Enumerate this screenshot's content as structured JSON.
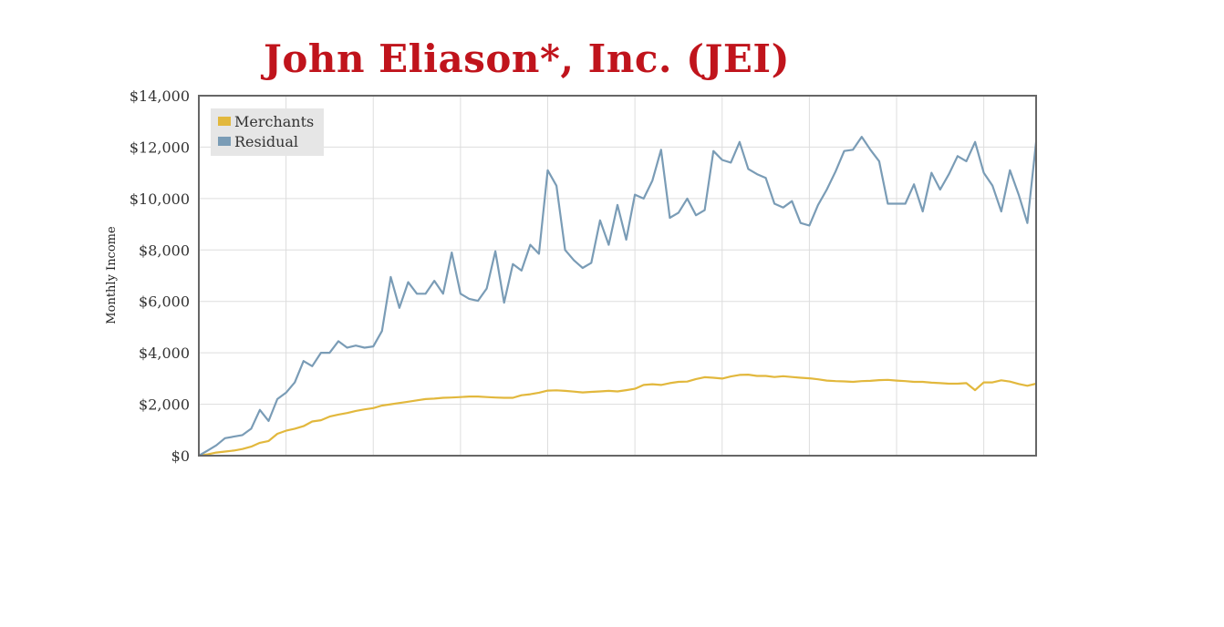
{
  "colors": {
    "title": "#c0141c",
    "merchants": "#e2b83d",
    "residual": "#7a9cb6",
    "grid": "#dddddd",
    "frame": "#666666",
    "legend_bg": "#e6e6e6"
  },
  "chart_data": {
    "type": "line",
    "title": "John Eliason*, Inc. (JEI)",
    "xlabel": "",
    "ylabel": "Monthly Income",
    "ylim": [
      0,
      14000
    ],
    "yticks": [
      "$0",
      "$2,000",
      "$4,000",
      "$6,000",
      "$8,000",
      "$10,000",
      "$12,000",
      "$14,000"
    ],
    "ytick_values": [
      0,
      2000,
      4000,
      6000,
      8000,
      10000,
      12000,
      14000
    ],
    "grid": true,
    "legend_position": "top-left",
    "x": [
      0,
      1,
      2,
      3,
      4,
      5,
      6,
      7,
      8,
      9,
      10,
      11,
      12,
      13,
      14,
      15,
      16,
      17,
      18,
      19,
      20,
      21,
      22,
      23,
      24,
      25,
      26,
      27,
      28,
      29,
      30,
      31,
      32,
      33,
      34,
      35,
      36,
      37,
      38,
      39,
      40,
      41,
      42,
      43,
      44,
      45,
      46,
      47,
      48,
      49,
      50,
      51,
      52,
      53,
      54,
      55,
      56,
      57,
      58,
      59,
      60,
      61,
      62,
      63,
      64,
      65,
      66,
      67,
      68,
      69,
      70,
      71,
      72,
      73,
      74,
      75,
      76,
      77,
      78,
      79,
      80,
      81,
      82,
      83,
      84,
      85,
      86,
      87,
      88,
      89,
      90,
      91,
      92,
      93,
      94,
      95,
      96
    ],
    "series": [
      {
        "name": "Merchants",
        "values": [
          0,
          50,
          120,
          160,
          200,
          260,
          350,
          500,
          570,
          850,
          970,
          1050,
          1150,
          1330,
          1380,
          1520,
          1600,
          1660,
          1740,
          1800,
          1850,
          1950,
          2000,
          2050,
          2100,
          2150,
          2200,
          2220,
          2250,
          2260,
          2280,
          2300,
          2300,
          2280,
          2260,
          2250,
          2250,
          2350,
          2390,
          2450,
          2530,
          2540,
          2520,
          2490,
          2460,
          2480,
          2500,
          2520,
          2500,
          2550,
          2600,
          2750,
          2780,
          2750,
          2820,
          2870,
          2880,
          2980,
          3050,
          3030,
          3000,
          3080,
          3140,
          3150,
          3100,
          3100,
          3060,
          3090,
          3060,
          3030,
          3010,
          2970,
          2920,
          2900,
          2890,
          2870,
          2900,
          2910,
          2940,
          2950,
          2920,
          2900,
          2870,
          2870,
          2840,
          2820,
          2800,
          2800,
          2820,
          2550,
          2850,
          2850,
          2930,
          2880,
          2790,
          2720,
          2800
        ]
      },
      {
        "name": "Residual",
        "values": [
          0,
          200,
          400,
          680,
          740,
          800,
          1050,
          1780,
          1350,
          2200,
          2450,
          2850,
          3680,
          3480,
          4000,
          4000,
          4450,
          4200,
          4280,
          4200,
          4250,
          4850,
          6950,
          5750,
          6750,
          6300,
          6300,
          6800,
          6300,
          7900,
          6300,
          6100,
          6020,
          6500,
          7950,
          5950,
          7450,
          7200,
          8200,
          7850,
          11100,
          10500,
          8000,
          7600,
          7300,
          7500,
          9150,
          8200,
          9750,
          8400,
          10150,
          10000,
          10700,
          11900,
          9250,
          9450,
          10000,
          9350,
          9550,
          11850,
          11500,
          11400,
          12200,
          11150,
          10950,
          10800,
          9800,
          9650,
          9900,
          9050,
          8950,
          9750,
          10350,
          11050,
          11850,
          11900,
          12400,
          11900,
          11450,
          9800,
          9800,
          9800,
          10550,
          9500,
          11000,
          10350,
          10950,
          11650,
          11450,
          12200,
          11000,
          10500,
          9500,
          11100,
          10150,
          9050,
          12200
        ]
      }
    ]
  }
}
